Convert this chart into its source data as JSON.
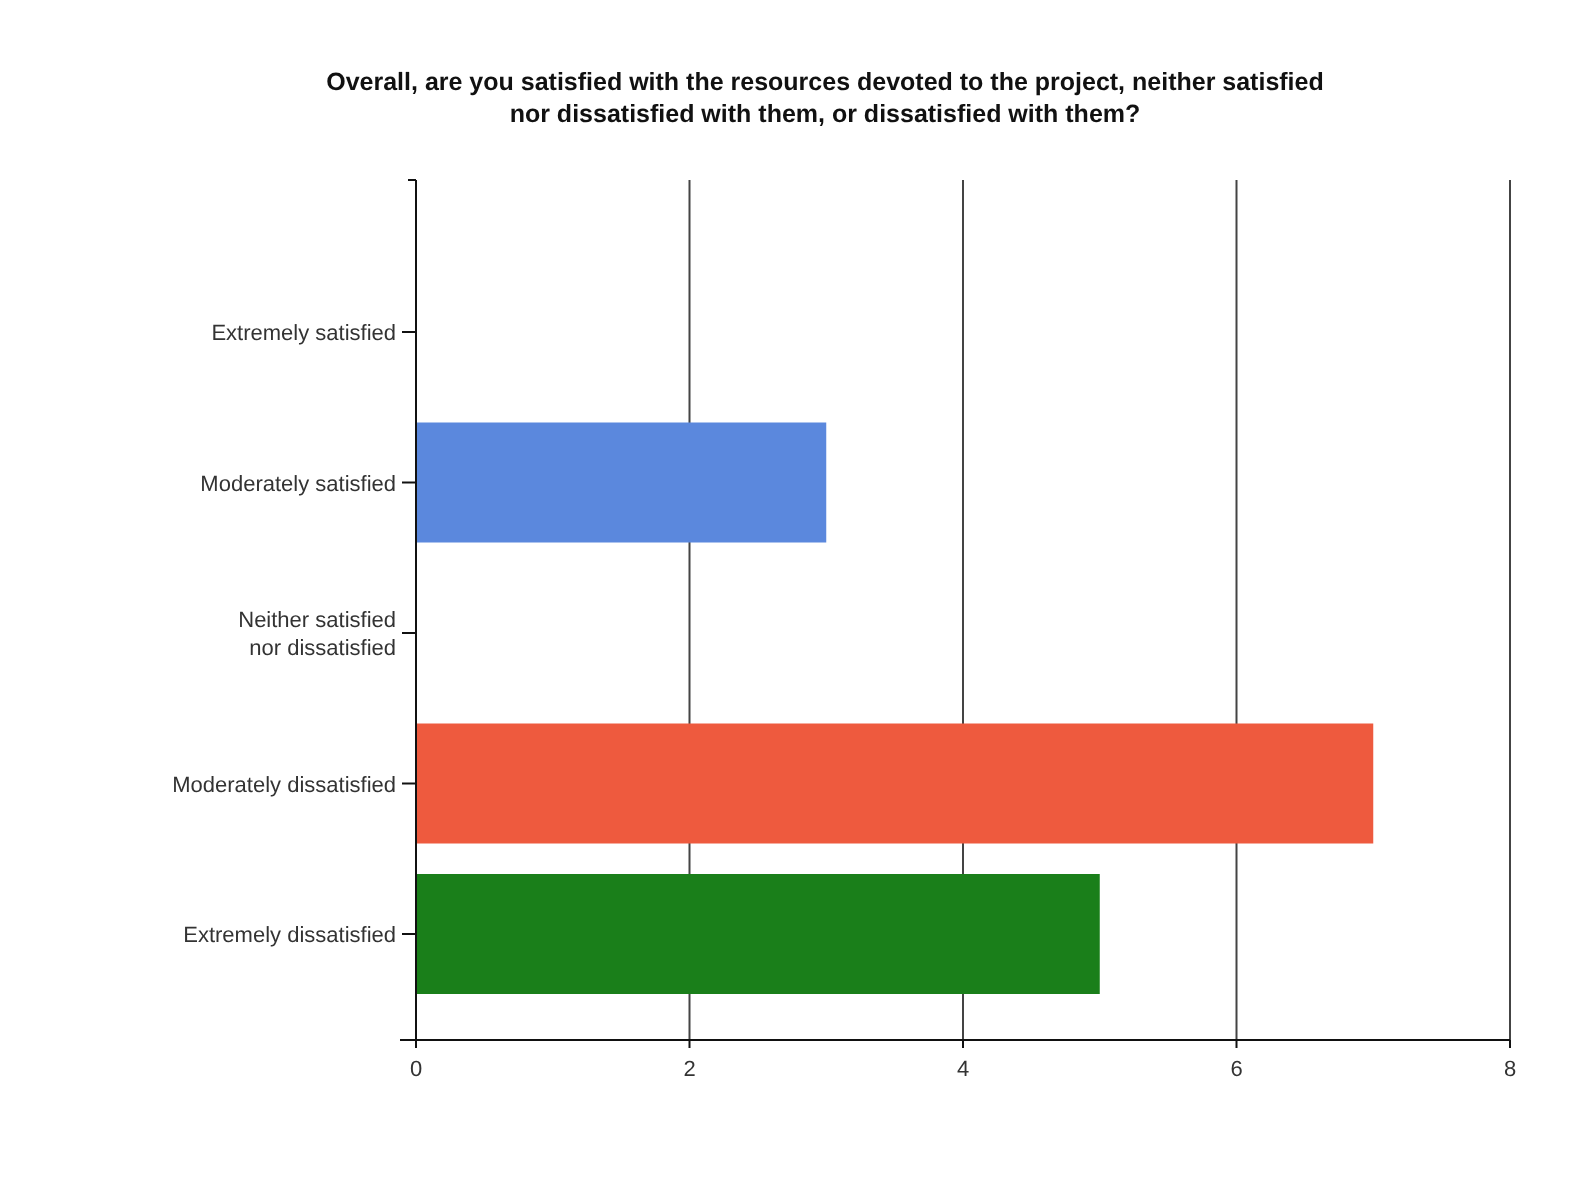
{
  "chart_data": {
    "type": "bar",
    "orientation": "horizontal",
    "title": "Overall, are you satisfied with the resources devoted to the project, neither satisfied\nnor dissatisfied with them, or dissatisfied with them?",
    "categories": [
      "Extremely satisfied",
      "Moderately satisfied",
      "Neither satisfied\nnor dissatisfied",
      "Moderately dissatisfied",
      "Extremely dissatisfied"
    ],
    "values": [
      0,
      3,
      0,
      7,
      5
    ],
    "colors": [
      "#5b88dd",
      "#5b88dd",
      "#5b88dd",
      "#ee5a3e",
      "#1a7f1a"
    ],
    "xlim": [
      0,
      8
    ],
    "xticks": [
      0,
      2,
      4,
      6,
      8
    ],
    "grid": "x"
  }
}
